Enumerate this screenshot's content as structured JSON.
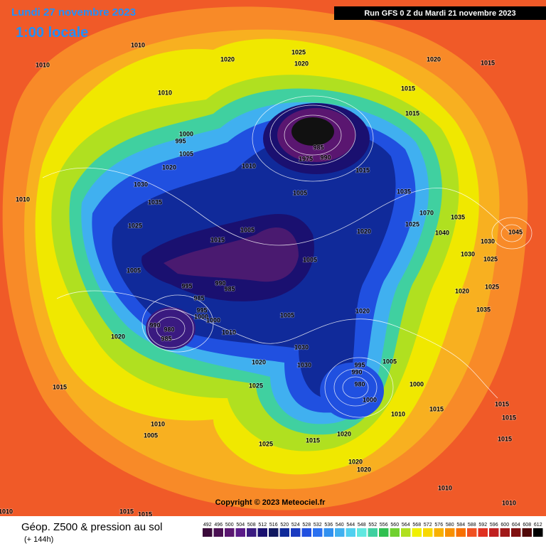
{
  "header": {
    "date": "Lundi 27 novembre 2023",
    "time": "1:00 locale",
    "run": "Run GFS 0 Z du Mardi 21 novembre 2023"
  },
  "copyright": "Copyright © 2023 Meteociel.fr",
  "isobar_labels": [
    "1010",
    "1010",
    "1010",
    "1020",
    "1025",
    "1020",
    "1020",
    "1015",
    "1015",
    "1015",
    "1000",
    "995",
    "1005",
    "1020",
    "1010",
    "1030",
    "1035",
    "1010",
    "1025",
    "1015",
    "1005",
    "985",
    "1975",
    "990",
    "1015",
    "1005",
    "1035",
    "1070",
    "1025",
    "1035",
    "1040",
    "1020",
    "1030",
    "1045",
    "1030",
    "1025",
    "1005",
    "1005",
    "995",
    "990",
    "985",
    "985",
    "995",
    "1000",
    "1000",
    "1020",
    "1005",
    "1020",
    "1025",
    "1035",
    "990",
    "980",
    "985",
    "1010",
    "1020",
    "1030",
    "1030",
    "1020",
    "995",
    "990",
    "980",
    "1000",
    "1005",
    "1000",
    "1010",
    "1015",
    "1025",
    "1015",
    "1010",
    "1005",
    "1025",
    "1015",
    "1020",
    "1020",
    "1020",
    "1015",
    "1015",
    "1015",
    "1010",
    "1010",
    "1010",
    "1015",
    "1015"
  ],
  "footer": {
    "title": "Géop. Z500 & pression au sol",
    "lead": "(+ 144h)"
  },
  "scale": {
    "values": [
      492,
      496,
      500,
      504,
      508,
      512,
      516,
      520,
      524,
      528,
      532,
      536,
      540,
      544,
      548,
      552,
      556,
      560,
      564,
      568,
      572,
      576,
      580,
      584,
      588,
      592,
      596,
      600,
      604,
      608,
      612
    ],
    "colors": [
      "#3a0a3a",
      "#4a0f52",
      "#5a1670",
      "#5a1a88",
      "#3a1a80",
      "#1a1070",
      "#101860",
      "#102a9a",
      "#1a3ac0",
      "#2050e0",
      "#2a70f0",
      "#3090f0",
      "#40b0f0",
      "#50d0f0",
      "#60e8e0",
      "#40d0a0",
      "#30c050",
      "#70d030",
      "#b0e020",
      "#f0f000",
      "#f8d800",
      "#f8b000",
      "#f89000",
      "#f87000",
      "#f05020",
      "#e03020",
      "#c02020",
      "#a01818",
      "#801010",
      "#500808",
      "#000000"
    ]
  }
}
